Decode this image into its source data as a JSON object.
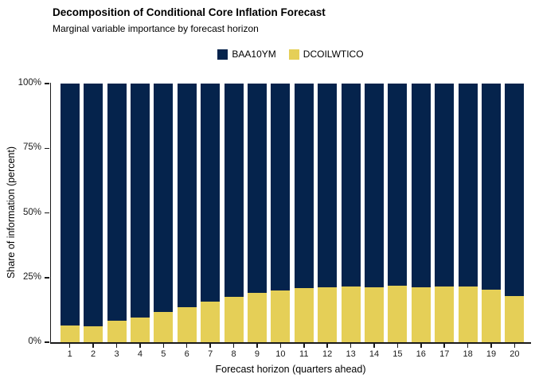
{
  "header": {
    "title": "Decomposition of Conditional Core Inflation Forecast",
    "subtitle": "Marginal variable importance by forecast horizon"
  },
  "legend": {
    "items": [
      {
        "label": "BAA10YM",
        "color": "#05234C"
      },
      {
        "label": "DCOILWTICO",
        "color": "#E5CF57"
      }
    ]
  },
  "y_axis": {
    "title": "Share of information (percent)",
    "ticks": [
      {
        "label": "0%",
        "value": 0
      },
      {
        "label": "25%",
        "value": 25
      },
      {
        "label": "50%",
        "value": 50
      },
      {
        "label": "75%",
        "value": 75
      },
      {
        "label": "100%",
        "value": 100
      }
    ]
  },
  "x_axis": {
    "title": "Forecast horizon (quarters ahead)"
  },
  "chart_data": {
    "type": "bar",
    "stacked": true,
    "title": "Decomposition of Conditional Core Inflation Forecast",
    "subtitle": "Marginal variable importance by forecast horizon",
    "xlabel": "Forecast horizon (quarters ahead)",
    "ylabel": "Share of information (percent)",
    "ylim": [
      0,
      100
    ],
    "unit": "percent",
    "grid": false,
    "legend_position": "top-center",
    "categories": [
      1,
      2,
      3,
      4,
      5,
      6,
      7,
      8,
      9,
      10,
      11,
      12,
      13,
      14,
      15,
      16,
      17,
      18,
      19,
      20
    ],
    "series": [
      {
        "name": "BAA10YM",
        "color": "#05234C",
        "stack_order": "top",
        "values": [
          93.5,
          93.7,
          91.6,
          90.6,
          88.4,
          86.5,
          84.4,
          82.6,
          81.0,
          80.1,
          79.1,
          78.9,
          78.6,
          78.9,
          78.0,
          78.9,
          78.6,
          78.4,
          79.8,
          82.2
        ]
      },
      {
        "name": "DCOILWTICO",
        "color": "#E5CF57",
        "stack_order": "bottom",
        "values": [
          6.5,
          6.3,
          8.4,
          9.4,
          11.6,
          13.5,
          15.6,
          17.4,
          19.0,
          19.9,
          20.9,
          21.1,
          21.4,
          21.1,
          22.0,
          21.1,
          21.4,
          21.6,
          20.2,
          17.8
        ]
      }
    ]
  }
}
